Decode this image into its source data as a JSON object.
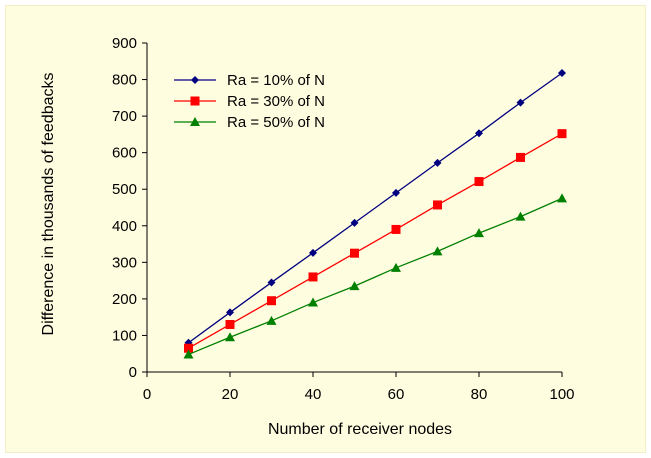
{
  "chart_data": {
    "type": "line",
    "title": "",
    "xlabel": "Number of receiver nodes",
    "ylabel": "Difference in thousands of feedbacks",
    "xlim": [
      0,
      100
    ],
    "ylim": [
      0,
      900
    ],
    "xticks": [
      "0",
      "20",
      "40",
      "60",
      "80",
      "100"
    ],
    "yticks": [
      "0",
      "100",
      "200",
      "300",
      "400",
      "500",
      "600",
      "700",
      "800",
      "900"
    ],
    "grid": false,
    "legend_position": "top-left",
    "x": [
      10,
      20,
      30,
      40,
      50,
      60,
      70,
      80,
      90,
      100
    ],
    "series": [
      {
        "name": "Ra = 10% of N",
        "color": "#000080",
        "marker": "diamond",
        "values": [
          80,
          163,
          245,
          326,
          408,
          490,
          572,
          653,
          737,
          818
        ]
      },
      {
        "name": "Ra = 30% of N",
        "color": "#ff0000",
        "marker": "square",
        "values": [
          65,
          130,
          195,
          260,
          325,
          390,
          457,
          521,
          587,
          652
        ]
      },
      {
        "name": "Ra = 50% of N",
        "color": "#008000",
        "marker": "triangle",
        "values": [
          48,
          95,
          140,
          190,
          235,
          285,
          330,
          380,
          425,
          475
        ]
      }
    ]
  }
}
